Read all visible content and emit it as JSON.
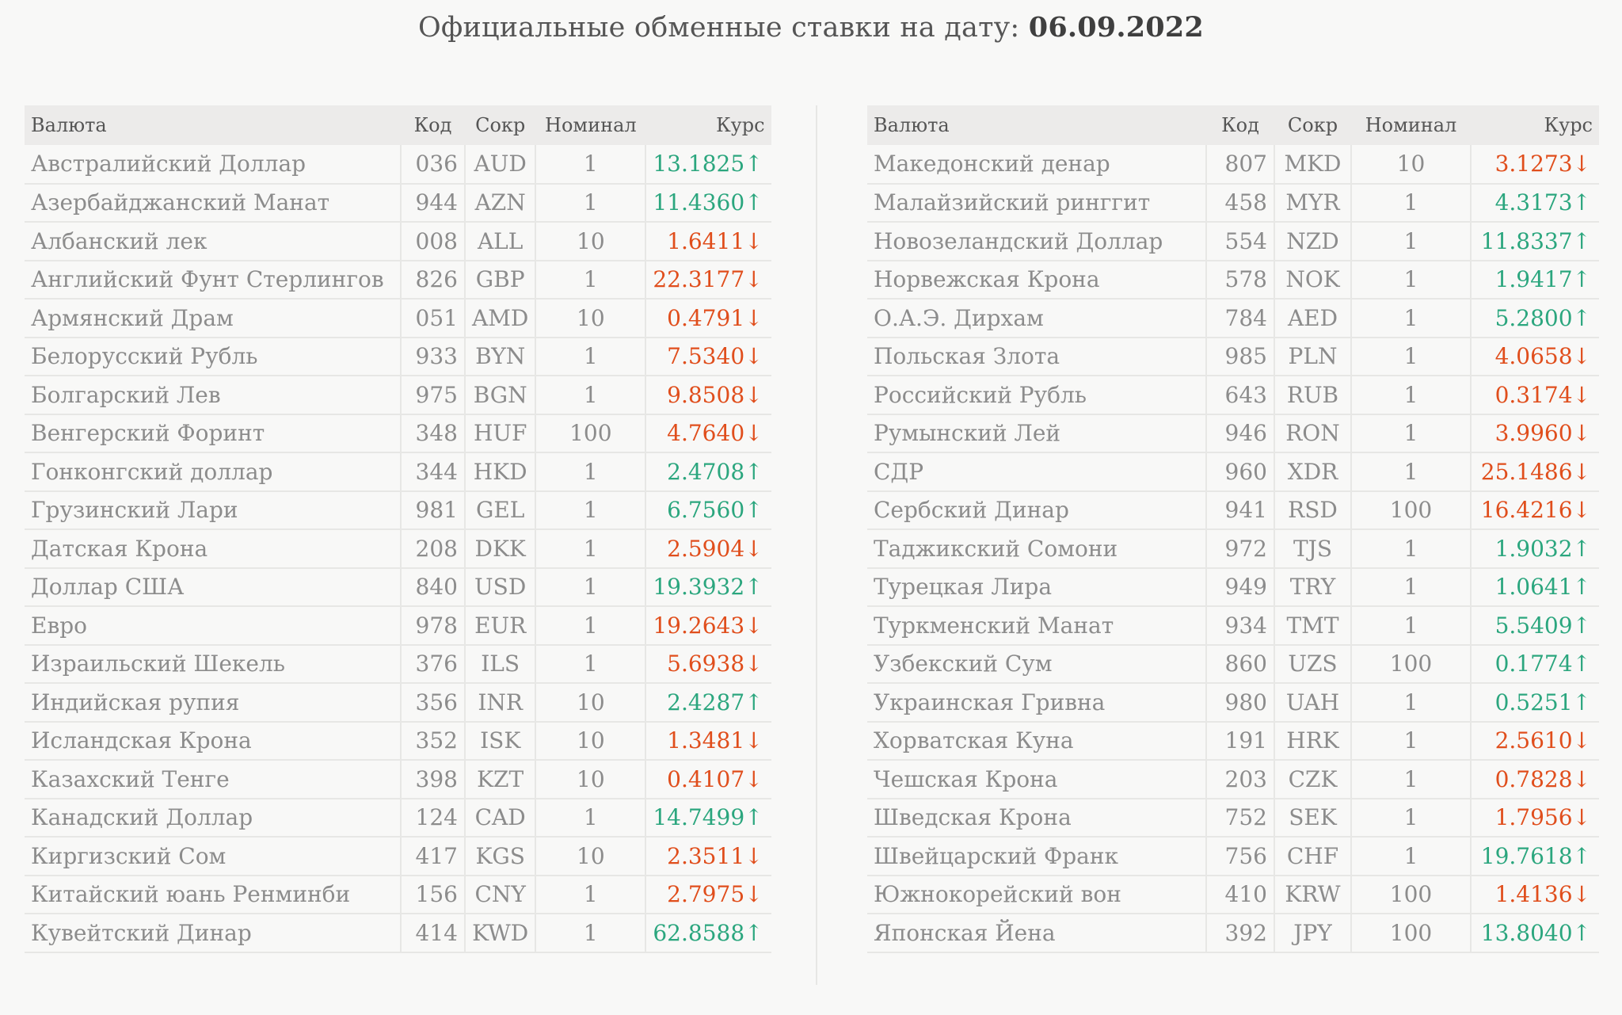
{
  "title": {
    "prefix": "Официальные обменные ставки на дату:",
    "date": "06.09.2022"
  },
  "colors": {
    "up": "#2ba67e",
    "down": "#e04e1c"
  },
  "headers": {
    "currency": "Валюта",
    "code": "Код",
    "abbr": "Сокр",
    "nominal": "Номинал",
    "rate": "Курс"
  },
  "tables": [
    [
      {
        "name": "Австралийский Доллар",
        "code": "036",
        "abbr": "AUD",
        "nominal": "1",
        "rate": "13.1825↑",
        "trend": "up"
      },
      {
        "name": "Азербайджанский Манат",
        "code": "944",
        "abbr": "AZN",
        "nominal": "1",
        "rate": "11.4360↑",
        "trend": "up"
      },
      {
        "name": "Албанский лек",
        "code": "008",
        "abbr": "ALL",
        "nominal": "10",
        "rate": "1.6411↓",
        "trend": "down"
      },
      {
        "name": "Английский Фунт Стерлингов",
        "code": "826",
        "abbr": "GBP",
        "nominal": "1",
        "rate": "22.3177↓",
        "trend": "down"
      },
      {
        "name": "Армянский Драм",
        "code": "051",
        "abbr": "AMD",
        "nominal": "10",
        "rate": "0.4791↓",
        "trend": "down"
      },
      {
        "name": "Белорусский Рубль",
        "code": "933",
        "abbr": "BYN",
        "nominal": "1",
        "rate": "7.5340↓",
        "trend": "down"
      },
      {
        "name": "Болгарский Лев",
        "code": "975",
        "abbr": "BGN",
        "nominal": "1",
        "rate": "9.8508↓",
        "trend": "down"
      },
      {
        "name": "Венгерский Форинт",
        "code": "348",
        "abbr": "HUF",
        "nominal": "100",
        "rate": "4.7640↓",
        "trend": "down"
      },
      {
        "name": "Гонконгский доллар",
        "code": "344",
        "abbr": "HKD",
        "nominal": "1",
        "rate": "2.4708↑",
        "trend": "up"
      },
      {
        "name": "Грузинский Лари",
        "code": "981",
        "abbr": "GEL",
        "nominal": "1",
        "rate": "6.7560↑",
        "trend": "up"
      },
      {
        "name": "Датская Крона",
        "code": "208",
        "abbr": "DKK",
        "nominal": "1",
        "rate": "2.5904↓",
        "trend": "down"
      },
      {
        "name": "Доллар США",
        "code": "840",
        "abbr": "USD",
        "nominal": "1",
        "rate": "19.3932↑",
        "trend": "up"
      },
      {
        "name": "Евро",
        "code": "978",
        "abbr": "EUR",
        "nominal": "1",
        "rate": "19.2643↓",
        "trend": "down"
      },
      {
        "name": "Израильский Шекель",
        "code": "376",
        "abbr": "ILS",
        "nominal": "1",
        "rate": "5.6938↓",
        "trend": "down"
      },
      {
        "name": "Индийская рупия",
        "code": "356",
        "abbr": "INR",
        "nominal": "10",
        "rate": "2.4287↑",
        "trend": "up"
      },
      {
        "name": "Исландская Крона",
        "code": "352",
        "abbr": "ISK",
        "nominal": "10",
        "rate": "1.3481↓",
        "trend": "down"
      },
      {
        "name": "Казахский Тенге",
        "code": "398",
        "abbr": "KZT",
        "nominal": "10",
        "rate": "0.4107↓",
        "trend": "down"
      },
      {
        "name": "Канадский Доллар",
        "code": "124",
        "abbr": "CAD",
        "nominal": "1",
        "rate": "14.7499↑",
        "trend": "up"
      },
      {
        "name": "Киргизский Сом",
        "code": "417",
        "abbr": "KGS",
        "nominal": "10",
        "rate": "2.3511↓",
        "trend": "down"
      },
      {
        "name": "Китайский юань Ренминби",
        "code": "156",
        "abbr": "CNY",
        "nominal": "1",
        "rate": "2.7975↓",
        "trend": "down"
      },
      {
        "name": "Кувейтский Динар",
        "code": "414",
        "abbr": "KWD",
        "nominal": "1",
        "rate": "62.8588↑",
        "trend": "up"
      }
    ],
    [
      {
        "name": "Македонский денар",
        "code": "807",
        "abbr": "MKD",
        "nominal": "10",
        "rate": "3.1273↓",
        "trend": "down"
      },
      {
        "name": "Малайзийский ринггит",
        "code": "458",
        "abbr": "MYR",
        "nominal": "1",
        "rate": "4.3173↑",
        "trend": "up"
      },
      {
        "name": "Новозеландский Доллар",
        "code": "554",
        "abbr": "NZD",
        "nominal": "1",
        "rate": "11.8337↑",
        "trend": "up"
      },
      {
        "name": "Норвежская Крона",
        "code": "578",
        "abbr": "NOK",
        "nominal": "1",
        "rate": "1.9417↑",
        "trend": "up"
      },
      {
        "name": "О.А.Э. Дирхам",
        "code": "784",
        "abbr": "AED",
        "nominal": "1",
        "rate": "5.2800↑",
        "trend": "up"
      },
      {
        "name": "Польская Злота",
        "code": "985",
        "abbr": "PLN",
        "nominal": "1",
        "rate": "4.0658↓",
        "trend": "down"
      },
      {
        "name": "Российский Рубль",
        "code": "643",
        "abbr": "RUB",
        "nominal": "1",
        "rate": "0.3174↓",
        "trend": "down"
      },
      {
        "name": "Румынский Лей",
        "code": "946",
        "abbr": "RON",
        "nominal": "1",
        "rate": "3.9960↓",
        "trend": "down"
      },
      {
        "name": "СДР",
        "code": "960",
        "abbr": "XDR",
        "nominal": "1",
        "rate": "25.1486↓",
        "trend": "down"
      },
      {
        "name": "Сербский Динар",
        "code": "941",
        "abbr": "RSD",
        "nominal": "100",
        "rate": "16.4216↓",
        "trend": "down"
      },
      {
        "name": "Таджикский Сомони",
        "code": "972",
        "abbr": "TJS",
        "nominal": "1",
        "rate": "1.9032↑",
        "trend": "up"
      },
      {
        "name": "Турецкая Лира",
        "code": "949",
        "abbr": "TRY",
        "nominal": "1",
        "rate": "1.0641↑",
        "trend": "up"
      },
      {
        "name": "Туркменский Манат",
        "code": "934",
        "abbr": "TMT",
        "nominal": "1",
        "rate": "5.5409↑",
        "trend": "up"
      },
      {
        "name": "Узбекский Сум",
        "code": "860",
        "abbr": "UZS",
        "nominal": "100",
        "rate": "0.1774↑",
        "trend": "up"
      },
      {
        "name": "Украинская Гривна",
        "code": "980",
        "abbr": "UAH",
        "nominal": "1",
        "rate": "0.5251↑",
        "trend": "up"
      },
      {
        "name": "Хорватская Куна",
        "code": "191",
        "abbr": "HRK",
        "nominal": "1",
        "rate": "2.5610↓",
        "trend": "down"
      },
      {
        "name": "Чешская Крона",
        "code": "203",
        "abbr": "CZK",
        "nominal": "1",
        "rate": "0.7828↓",
        "trend": "down"
      },
      {
        "name": "Шведская Крона",
        "code": "752",
        "abbr": "SEK",
        "nominal": "1",
        "rate": "1.7956↓",
        "trend": "down"
      },
      {
        "name": "Швейцарский Франк",
        "code": "756",
        "abbr": "CHF",
        "nominal": "1",
        "rate": "19.7618↑",
        "trend": "up"
      },
      {
        "name": "Южнокорейский вон",
        "code": "410",
        "abbr": "KRW",
        "nominal": "100",
        "rate": "1.4136↓",
        "trend": "down"
      },
      {
        "name": "Японская Йена",
        "code": "392",
        "abbr": "JPY",
        "nominal": "100",
        "rate": "13.8040↑",
        "trend": "up"
      }
    ]
  ]
}
